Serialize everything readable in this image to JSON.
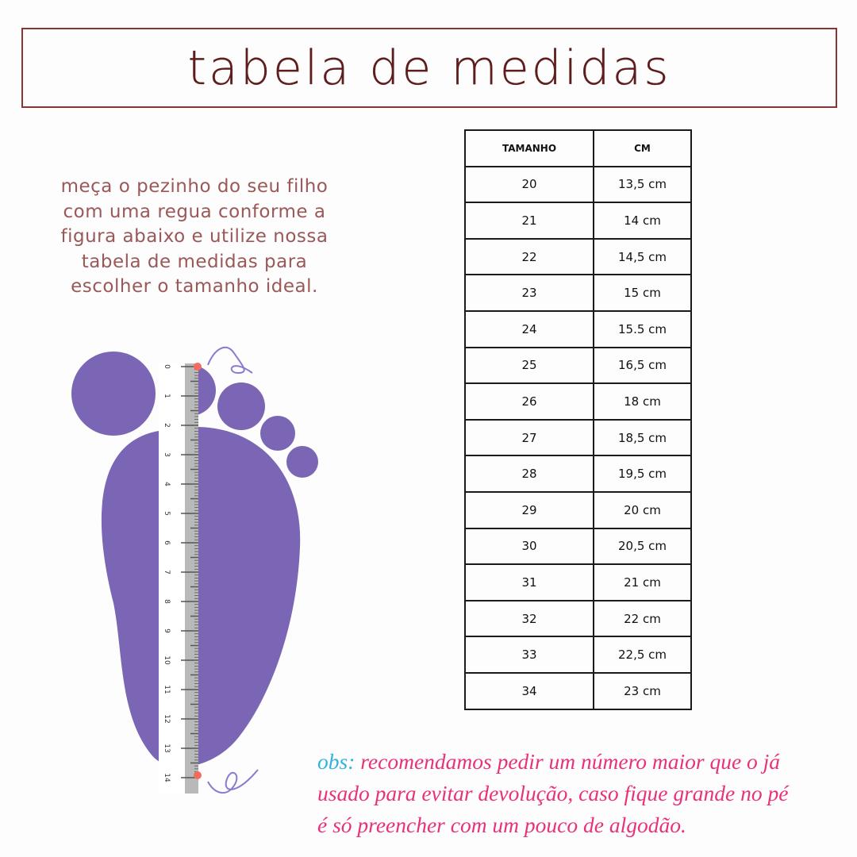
{
  "title": "tabela de medidas",
  "instructions": [
    "meça o pezinho do seu filho",
    "com uma regua conforme a",
    "figura abaixo e utilize nossa",
    "tabela de medidas para",
    "escolher o tamanho ideal."
  ],
  "table": {
    "headers": [
      "TAMANHO",
      "CM"
    ],
    "rows": [
      [
        "20",
        "13,5 cm"
      ],
      [
        "21",
        "14 cm"
      ],
      [
        "22",
        "14,5 cm"
      ],
      [
        "23",
        "15 cm"
      ],
      [
        "24",
        "15.5 cm"
      ],
      [
        "25",
        "16,5 cm"
      ],
      [
        "26",
        "18 cm"
      ],
      [
        "27",
        "18,5 cm"
      ],
      [
        "28",
        "19,5 cm"
      ],
      [
        "29",
        "20 cm"
      ],
      [
        "30",
        "20,5 cm"
      ],
      [
        "31",
        "21 cm"
      ],
      [
        "32",
        "22 cm"
      ],
      [
        "33",
        "22,5 cm"
      ],
      [
        "34",
        "23 cm"
      ]
    ]
  },
  "obs": {
    "label": "obs:",
    "lines": [
      "recomendamos pedir um número maior que o já",
      "usado para evitar devolução, caso fique grande no pé",
      "é só preencher com um pouco de algodão."
    ]
  },
  "ruler": {
    "labels": [
      "0",
      "1",
      "2",
      "3",
      "4",
      "5",
      "6",
      "7",
      "8",
      "9",
      "10",
      "11",
      "12",
      "13",
      "14"
    ]
  },
  "colors": {
    "foot": "#7a66b5",
    "title_border": "#8a3434",
    "obs_text": "#e8317a",
    "obs_label": "#2fb3e0",
    "marker": "#f36b5e"
  }
}
